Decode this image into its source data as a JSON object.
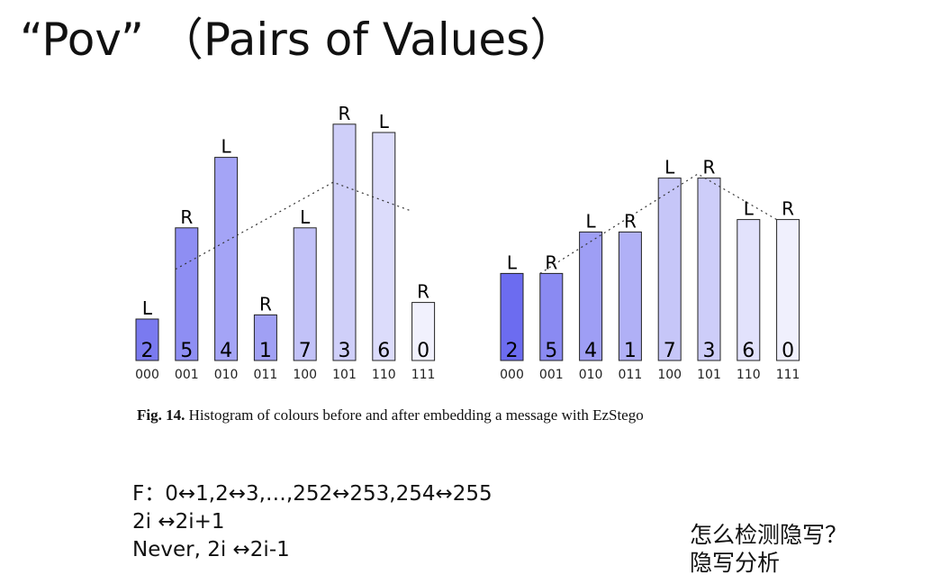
{
  "title": "“Pov”  （Pairs of Values）",
  "caption": {
    "label": "Fig. 14.",
    "text": " Histogram of colours before and after embedding a message with EzStego"
  },
  "notes": [
    "F：0↔1,2↔3,…,252↔253,254↔255",
    "2i ↔2i+1",
    "Never, 2i ↔2i-1"
  ],
  "questions": [
    "怎么检测隐写？",
    "隐写分析"
  ],
  "chart_data": [
    {
      "type": "bar",
      "categories": [
        "000",
        "001",
        "010",
        "011",
        "100",
        "101",
        "110",
        "111"
      ],
      "bar_numbers": [
        "2",
        "5",
        "4",
        "1",
        "7",
        "3",
        "6",
        "0"
      ],
      "pair_labels": [
        "L",
        "R",
        "L",
        "R",
        "L",
        "R",
        "L",
        "R"
      ],
      "values": [
        1.0,
        3.2,
        4.9,
        1.1,
        3.2,
        5.7,
        5.5,
        1.4
      ],
      "bar_colors": [
        "#7a7af0",
        "#8e8ef3",
        "#a4a4f6",
        "#a0a0f4",
        "#c2c2f8",
        "#cfcff9",
        "#dcdcfb",
        "#f1f1fd"
      ],
      "trend_line": [
        [
          1,
          2.2
        ],
        [
          5,
          4.3
        ],
        [
          7,
          3.6
        ]
      ],
      "ylim": [
        0,
        6
      ]
    },
    {
      "type": "bar",
      "categories": [
        "000",
        "001",
        "010",
        "011",
        "100",
        "101",
        "110",
        "111"
      ],
      "bar_numbers": [
        "2",
        "5",
        "4",
        "1",
        "7",
        "3",
        "6",
        "0"
      ],
      "pair_labels": [
        "L",
        "R",
        "L",
        "R",
        "L",
        "R",
        "L",
        "R"
      ],
      "values": [
        2.1,
        2.1,
        3.1,
        3.1,
        4.4,
        4.4,
        3.4,
        3.4
      ],
      "bar_colors": [
        "#6c6cf0",
        "#8a8af2",
        "#9e9ef5",
        "#b0b0f6",
        "#c6c6f8",
        "#cdcdf9",
        "#e2e2fc",
        "#f0f0fd"
      ],
      "trend_line": [
        [
          1,
          2.1
        ],
        [
          5,
          4.5
        ],
        [
          7,
          3.4
        ]
      ],
      "ylim": [
        0,
        6
      ]
    }
  ]
}
